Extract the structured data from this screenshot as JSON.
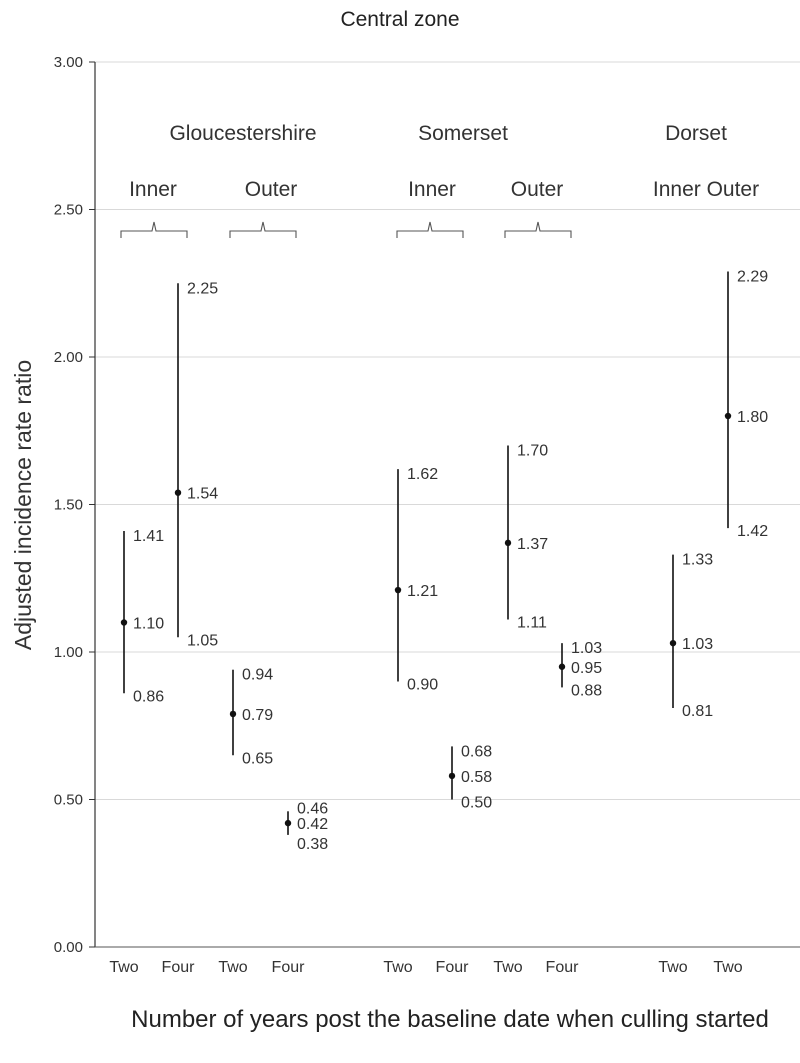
{
  "chart_data": {
    "type": "scatter",
    "subtype": "point-estimates-with-confidence-intervals",
    "title": "Central zone",
    "xlabel": "Number of years post the baseline date when culling started",
    "ylabel": "Adjusted incidence rate ratio",
    "ylim": [
      0,
      3
    ],
    "yticks": [
      "0.00",
      "0.50",
      "1.00",
      "1.50",
      "2.00",
      "2.50",
      "3.00"
    ],
    "grid": true,
    "group_labels": [
      {
        "text": "Gloucestershire"
      },
      {
        "text": "Somerset"
      },
      {
        "text": "Dorset"
      }
    ],
    "subgroup_labels": [
      {
        "text": "Inner"
      },
      {
        "text": "Outer"
      },
      {
        "text": "Inner"
      },
      {
        "text": "Outer"
      },
      {
        "text": "Inner Outer"
      }
    ],
    "points": [
      {
        "county": "Gloucestershire",
        "zone": "Inner",
        "category": "Two",
        "estimate": 1.1,
        "lower": 0.86,
        "upper": 1.41,
        "labels": [
          "1.10",
          "0.86",
          "1.41"
        ]
      },
      {
        "county": "Gloucestershire",
        "zone": "Inner",
        "category": "Four",
        "estimate": 1.54,
        "lower": 1.05,
        "upper": 2.25,
        "labels": [
          "1.54",
          "1.05",
          "2.25"
        ]
      },
      {
        "county": "Gloucestershire",
        "zone": "Outer",
        "category": "Two",
        "estimate": 0.79,
        "lower": 0.65,
        "upper": 0.94,
        "labels": [
          "0.79",
          "0.65",
          "0.94"
        ]
      },
      {
        "county": "Gloucestershire",
        "zone": "Outer",
        "category": "Four",
        "estimate": 0.42,
        "lower": 0.38,
        "upper": 0.46,
        "labels": [
          "0.42",
          "0.38",
          "0.46"
        ]
      },
      {
        "county": "Somerset",
        "zone": "Inner",
        "category": "Two",
        "estimate": 1.21,
        "lower": 0.9,
        "upper": 1.62,
        "labels": [
          "1.21",
          "0.90",
          "1.62"
        ]
      },
      {
        "county": "Somerset",
        "zone": "Inner",
        "category": "Four",
        "estimate": 0.58,
        "lower": 0.5,
        "upper": 0.68,
        "labels": [
          "0.58",
          "0.50",
          "0.68"
        ]
      },
      {
        "county": "Somerset",
        "zone": "Outer",
        "category": "Two",
        "estimate": 1.37,
        "lower": 1.11,
        "upper": 1.7,
        "labels": [
          "1.37",
          "1.11",
          "1.70"
        ]
      },
      {
        "county": "Somerset",
        "zone": "Outer",
        "category": "Four",
        "estimate": 0.95,
        "lower": 0.88,
        "upper": 1.03,
        "labels": [
          "0.95",
          "0.88",
          "1.03"
        ]
      },
      {
        "county": "Dorset",
        "zone": "Inner",
        "category": "Two",
        "estimate": 1.03,
        "lower": 0.81,
        "upper": 1.33,
        "labels": [
          "1.03",
          "0.81",
          "1.33"
        ]
      },
      {
        "county": "Dorset",
        "zone": "Outer",
        "category": "Two",
        "estimate": 1.8,
        "lower": 1.42,
        "upper": 2.29,
        "labels": [
          "1.80",
          "1.42",
          "2.29"
        ]
      }
    ]
  }
}
